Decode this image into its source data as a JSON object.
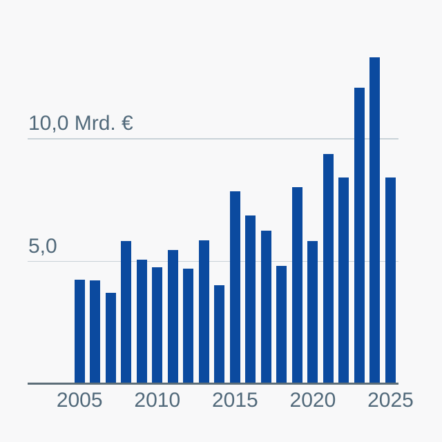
{
  "chart_data": {
    "type": "bar",
    "title": "",
    "xlabel": "",
    "ylabel": "",
    "unit_label": "Mrd. €",
    "legend": "none",
    "grid": "horizontal",
    "ylim": [
      0,
      14
    ],
    "categories": [
      2005,
      2006,
      2007,
      2008,
      2009,
      2010,
      2011,
      2012,
      2013,
      2014,
      2015,
      2016,
      2017,
      2018,
      2019,
      2020,
      2021,
      2022,
      2023,
      2024,
      2025
    ],
    "values": [
      4.25,
      4.2,
      3.7,
      5.8,
      5.05,
      4.75,
      5.45,
      4.7,
      5.85,
      4.0,
      7.85,
      6.85,
      6.25,
      4.8,
      8.0,
      5.8,
      9.35,
      8.4,
      12.05,
      13.3,
      8.4
    ],
    "x_tick_labels": [
      "2005",
      "2010",
      "2015",
      "2020",
      "2025"
    ],
    "x_tick_years": [
      2005,
      2010,
      2015,
      2020,
      2025
    ],
    "gridlines": [
      {
        "value": 10.0,
        "label": "10,0 Mrd. €"
      },
      {
        "value": 5.0,
        "label": "5,0"
      }
    ]
  },
  "colors": {
    "background": "#f8f8f9",
    "bar": "#0b4a9f",
    "gridline": "#c9d2d8",
    "axis": "#5c6d78",
    "label": "#51697a"
  }
}
